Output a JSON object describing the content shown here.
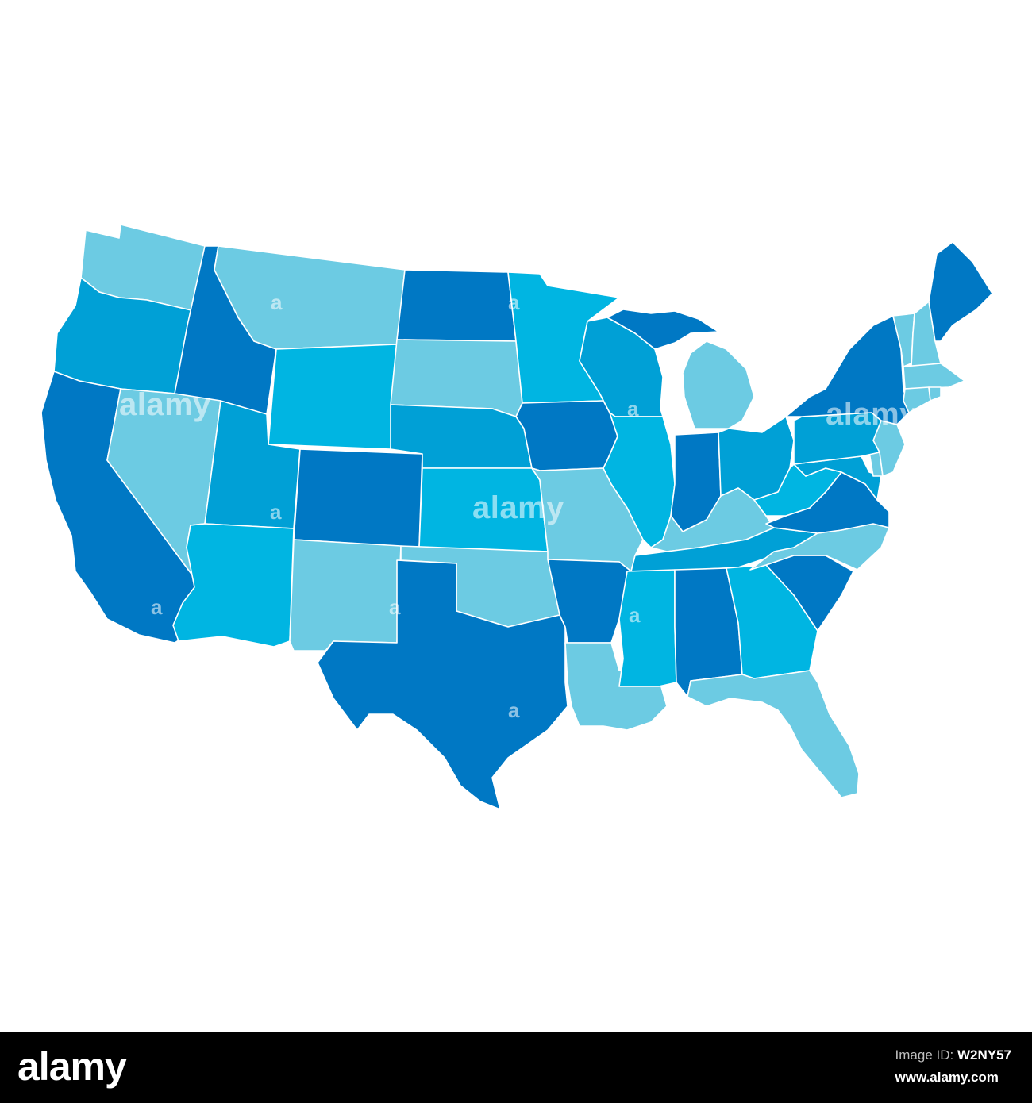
{
  "watermark": {
    "brand": "alamy",
    "mark": "a"
  },
  "colors": {
    "background": "#ffffff",
    "border": "#ffffff",
    "palette": {
      "light": "#6ccbe3",
      "sky": "#00b5e2",
      "medium": "#00a0d6",
      "dark": "#0078c4"
    }
  },
  "states": [
    {
      "name": "Washington",
      "shade": "light"
    },
    {
      "name": "Oregon",
      "shade": "medium"
    },
    {
      "name": "California",
      "shade": "dark"
    },
    {
      "name": "Idaho",
      "shade": "dark"
    },
    {
      "name": "Nevada",
      "shade": "light"
    },
    {
      "name": "Montana",
      "shade": "light"
    },
    {
      "name": "Wyoming",
      "shade": "sky"
    },
    {
      "name": "Utah",
      "shade": "medium"
    },
    {
      "name": "Arizona",
      "shade": "sky"
    },
    {
      "name": "Colorado",
      "shade": "dark"
    },
    {
      "name": "New Mexico",
      "shade": "light"
    },
    {
      "name": "North Dakota",
      "shade": "dark"
    },
    {
      "name": "South Dakota",
      "shade": "light"
    },
    {
      "name": "Nebraska",
      "shade": "medium"
    },
    {
      "name": "Kansas",
      "shade": "sky"
    },
    {
      "name": "Oklahoma",
      "shade": "light"
    },
    {
      "name": "Texas",
      "shade": "dark"
    },
    {
      "name": "Minnesota",
      "shade": "sky"
    },
    {
      "name": "Iowa",
      "shade": "dark"
    },
    {
      "name": "Missouri",
      "shade": "light"
    },
    {
      "name": "Arkansas",
      "shade": "dark"
    },
    {
      "name": "Louisiana",
      "shade": "light"
    },
    {
      "name": "Wisconsin",
      "shade": "medium"
    },
    {
      "name": "Illinois",
      "shade": "sky"
    },
    {
      "name": "Michigan Upper Peninsula",
      "shade": "dark"
    },
    {
      "name": "Michigan",
      "shade": "light"
    },
    {
      "name": "Indiana",
      "shade": "dark"
    },
    {
      "name": "Ohio",
      "shade": "medium"
    },
    {
      "name": "Kentucky",
      "shade": "light"
    },
    {
      "name": "Tennessee",
      "shade": "medium"
    },
    {
      "name": "Mississippi",
      "shade": "sky"
    },
    {
      "name": "Alabama",
      "shade": "dark"
    },
    {
      "name": "Georgia",
      "shade": "sky"
    },
    {
      "name": "Florida",
      "shade": "light"
    },
    {
      "name": "South Carolina",
      "shade": "dark"
    },
    {
      "name": "North Carolina",
      "shade": "light"
    },
    {
      "name": "Virginia",
      "shade": "dark"
    },
    {
      "name": "West Virginia",
      "shade": "sky"
    },
    {
      "name": "Maryland",
      "shade": "medium"
    },
    {
      "name": "Delaware",
      "shade": "light"
    },
    {
      "name": "New Jersey",
      "shade": "light"
    },
    {
      "name": "Pennsylvania",
      "shade": "medium"
    },
    {
      "name": "New York",
      "shade": "dark"
    },
    {
      "name": "Vermont",
      "shade": "light"
    },
    {
      "name": "New Hampshire",
      "shade": "light"
    },
    {
      "name": "Maine",
      "shade": "dark"
    },
    {
      "name": "Massachusetts",
      "shade": "light"
    },
    {
      "name": "Connecticut",
      "shade": "light"
    },
    {
      "name": "Rhode Island",
      "shade": "light"
    }
  ],
  "footer": {
    "logo": "alamy",
    "image_id_label": "Image ID:",
    "image_id": "W2NY57",
    "site": "www.alamy.com"
  }
}
